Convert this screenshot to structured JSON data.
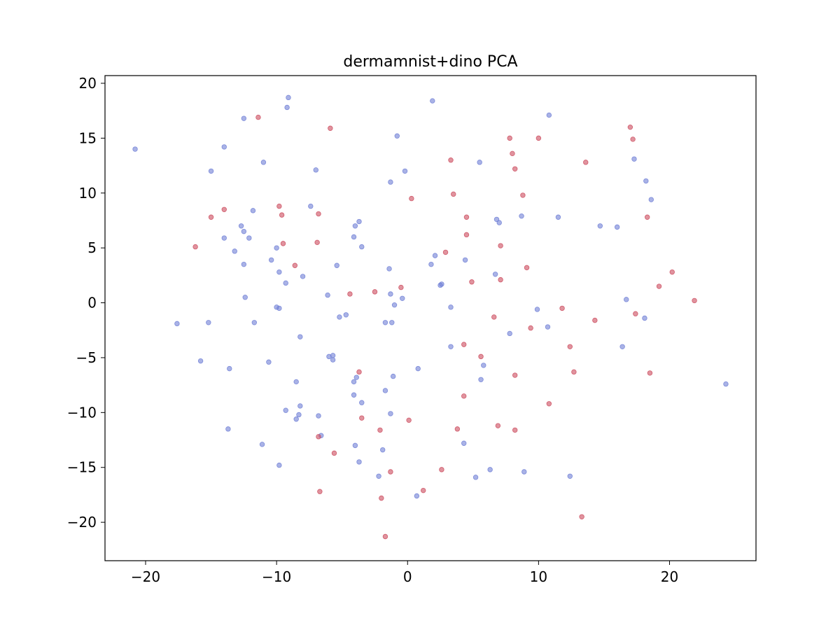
{
  "chart_data": {
    "type": "scatter",
    "title": "dermamnist+dino PCA",
    "xlabel": "",
    "ylabel": "",
    "xlim": [
      -23.1,
      26.6
    ],
    "ylim": [
      -23.5,
      20.7
    ],
    "xticks": [
      -20,
      -10,
      0,
      10,
      20
    ],
    "yticks": [
      -20,
      -15,
      -10,
      -5,
      0,
      5,
      10,
      15,
      20
    ],
    "xtick_labels": [
      "−20",
      "−10",
      "0",
      "10",
      "20"
    ],
    "ytick_labels": [
      "−20",
      "−15",
      "−10",
      "−5",
      "0",
      "5",
      "10",
      "15",
      "20"
    ],
    "grid": false,
    "colors": {
      "blue": "#6f7fd6",
      "red": "#cc4b5e"
    },
    "series": [
      {
        "color": "blue",
        "points": [
          [
            -20.8,
            14.0
          ],
          [
            -9.1,
            18.7
          ],
          [
            -9.2,
            17.8
          ],
          [
            -12.5,
            16.8
          ],
          [
            1.9,
            18.4
          ],
          [
            10.8,
            17.1
          ],
          [
            -14.0,
            14.2
          ],
          [
            -0.8,
            15.2
          ],
          [
            -15.0,
            12.0
          ],
          [
            -11.0,
            12.8
          ],
          [
            -7.0,
            12.1
          ],
          [
            -1.3,
            11.0
          ],
          [
            -0.2,
            12.0
          ],
          [
            5.5,
            12.8
          ],
          [
            17.3,
            13.1
          ],
          [
            18.2,
            11.1
          ],
          [
            18.6,
            9.4
          ],
          [
            -7.4,
            8.8
          ],
          [
            -11.8,
            8.4
          ],
          [
            -3.7,
            7.4
          ],
          [
            -4.0,
            7.0
          ],
          [
            -12.7,
            7.0
          ],
          [
            -12.5,
            6.5
          ],
          [
            -14.0,
            5.9
          ],
          [
            -12.1,
            5.9
          ],
          [
            -4.1,
            6.0
          ],
          [
            6.8,
            7.6
          ],
          [
            7.0,
            7.3
          ],
          [
            8.7,
            7.9
          ],
          [
            11.5,
            7.8
          ],
          [
            14.7,
            7.0
          ],
          [
            16.0,
            6.9
          ],
          [
            -13.2,
            4.7
          ],
          [
            -10.0,
            5.0
          ],
          [
            -3.5,
            5.1
          ],
          [
            2.1,
            4.3
          ],
          [
            -10.4,
            3.9
          ],
          [
            -12.5,
            3.5
          ],
          [
            -5.4,
            3.4
          ],
          [
            1.8,
            3.5
          ],
          [
            4.4,
            3.9
          ],
          [
            -9.8,
            2.8
          ],
          [
            -1.4,
            3.1
          ],
          [
            6.7,
            2.6
          ],
          [
            -8.0,
            2.4
          ],
          [
            -9.3,
            1.8
          ],
          [
            2.6,
            1.7
          ],
          [
            2.5,
            1.6
          ],
          [
            -12.4,
            0.5
          ],
          [
            -6.1,
            0.7
          ],
          [
            -1.3,
            0.8
          ],
          [
            -0.4,
            0.4
          ],
          [
            -1.0,
            -0.2
          ],
          [
            -10.0,
            -0.4
          ],
          [
            -9.8,
            -0.5
          ],
          [
            3.3,
            -0.4
          ],
          [
            9.9,
            -0.6
          ],
          [
            16.7,
            0.3
          ],
          [
            -17.6,
            -1.9
          ],
          [
            -15.2,
            -1.8
          ],
          [
            -11.7,
            -1.8
          ],
          [
            -5.2,
            -1.3
          ],
          [
            -4.7,
            -1.1
          ],
          [
            -1.7,
            -1.8
          ],
          [
            -1.2,
            -1.8
          ],
          [
            7.8,
            -2.8
          ],
          [
            10.7,
            -2.2
          ],
          [
            18.1,
            -1.4
          ],
          [
            -8.2,
            -3.1
          ],
          [
            3.3,
            -4.0
          ],
          [
            16.4,
            -4.0
          ],
          [
            -15.8,
            -5.3
          ],
          [
            -10.6,
            -5.4
          ],
          [
            -6.0,
            -4.9
          ],
          [
            -5.7,
            -4.8
          ],
          [
            -5.7,
            -5.2
          ],
          [
            -13.6,
            -6.0
          ],
          [
            0.8,
            -6.0
          ],
          [
            5.8,
            -5.7
          ],
          [
            -3.9,
            -6.8
          ],
          [
            -4.1,
            -7.2
          ],
          [
            -1.1,
            -6.7
          ],
          [
            5.6,
            -7.0
          ],
          [
            -8.5,
            -7.2
          ],
          [
            -1.7,
            -8.0
          ],
          [
            -4.1,
            -8.4
          ],
          [
            -3.5,
            -9.1
          ],
          [
            24.3,
            -7.4
          ],
          [
            -8.2,
            -9.4
          ],
          [
            -9.3,
            -9.8
          ],
          [
            -8.3,
            -10.2
          ],
          [
            -8.5,
            -10.6
          ],
          [
            -6.8,
            -10.3
          ],
          [
            -1.3,
            -10.1
          ],
          [
            -13.7,
            -11.5
          ],
          [
            -6.6,
            -12.1
          ],
          [
            -11.1,
            -12.9
          ],
          [
            -4.0,
            -13.0
          ],
          [
            -1.9,
            -13.4
          ],
          [
            4.3,
            -12.8
          ],
          [
            -9.8,
            -14.8
          ],
          [
            -3.7,
            -14.5
          ],
          [
            6.3,
            -15.2
          ],
          [
            -2.2,
            -15.8
          ],
          [
            5.2,
            -15.9
          ],
          [
            8.9,
            -15.4
          ],
          [
            12.4,
            -15.8
          ],
          [
            0.7,
            -17.6
          ]
        ]
      },
      {
        "color": "red",
        "points": [
          [
            -11.4,
            16.9
          ],
          [
            -5.9,
            15.9
          ],
          [
            7.8,
            15.0
          ],
          [
            10.0,
            15.0
          ],
          [
            17.0,
            16.0
          ],
          [
            17.2,
            14.9
          ],
          [
            8.0,
            13.6
          ],
          [
            3.3,
            13.0
          ],
          [
            13.6,
            12.8
          ],
          [
            8.2,
            12.2
          ],
          [
            3.5,
            9.9
          ],
          [
            0.3,
            9.5
          ],
          [
            8.8,
            9.8
          ],
          [
            -14.0,
            8.5
          ],
          [
            -9.8,
            8.8
          ],
          [
            -15.0,
            7.8
          ],
          [
            -9.6,
            8.0
          ],
          [
            -6.8,
            8.1
          ],
          [
            4.5,
            7.8
          ],
          [
            18.3,
            7.8
          ],
          [
            4.5,
            6.2
          ],
          [
            -16.2,
            5.1
          ],
          [
            -9.5,
            5.4
          ],
          [
            -6.9,
            5.5
          ],
          [
            7.1,
            5.2
          ],
          [
            2.9,
            4.6
          ],
          [
            -8.6,
            3.4
          ],
          [
            9.1,
            3.2
          ],
          [
            20.2,
            2.8
          ],
          [
            4.9,
            1.9
          ],
          [
            7.1,
            2.1
          ],
          [
            19.2,
            1.5
          ],
          [
            -0.5,
            1.4
          ],
          [
            -2.5,
            1.0
          ],
          [
            -4.4,
            0.8
          ],
          [
            21.9,
            0.2
          ],
          [
            11.8,
            -0.5
          ],
          [
            17.4,
            -1.0
          ],
          [
            6.6,
            -1.3
          ],
          [
            14.3,
            -1.6
          ],
          [
            9.4,
            -2.3
          ],
          [
            4.3,
            -3.8
          ],
          [
            12.4,
            -4.0
          ],
          [
            5.6,
            -4.9
          ],
          [
            -3.7,
            -6.3
          ],
          [
            8.2,
            -6.6
          ],
          [
            12.7,
            -6.3
          ],
          [
            18.5,
            -6.4
          ],
          [
            4.3,
            -8.5
          ],
          [
            10.8,
            -9.2
          ],
          [
            -3.5,
            -10.5
          ],
          [
            0.1,
            -10.7
          ],
          [
            -2.1,
            -11.6
          ],
          [
            3.8,
            -11.5
          ],
          [
            6.9,
            -11.2
          ],
          [
            8.2,
            -11.6
          ],
          [
            -6.8,
            -12.2
          ],
          [
            -5.6,
            -13.7
          ],
          [
            2.6,
            -15.2
          ],
          [
            -1.3,
            -15.4
          ],
          [
            -6.7,
            -17.2
          ],
          [
            1.2,
            -17.1
          ],
          [
            -2.0,
            -17.8
          ],
          [
            13.3,
            -19.5
          ],
          [
            -1.7,
            -21.3
          ]
        ]
      }
    ]
  }
}
